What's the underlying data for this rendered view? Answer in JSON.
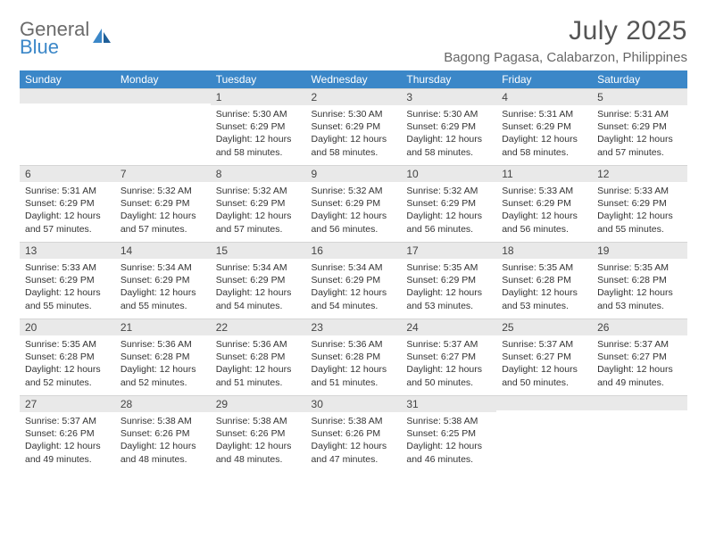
{
  "brand": {
    "word1": "General",
    "word2": "Blue"
  },
  "title": "July 2025",
  "location": "Bagong Pagasa, Calabarzon, Philippines",
  "colors": {
    "header_bg": "#3b87c8",
    "header_text": "#ffffff",
    "daynum_bg": "#e9e9e9",
    "page_bg": "#ffffff",
    "logo_gray": "#6b6b6b",
    "logo_blue": "#3b87c8"
  },
  "days_of_week": [
    "Sunday",
    "Monday",
    "Tuesday",
    "Wednesday",
    "Thursday",
    "Friday",
    "Saturday"
  ],
  "first_weekday_index": 2,
  "cells": [
    {
      "n": 1,
      "sr": "5:30 AM",
      "ss": "6:29 PM",
      "dl": "12 hours and 58 minutes."
    },
    {
      "n": 2,
      "sr": "5:30 AM",
      "ss": "6:29 PM",
      "dl": "12 hours and 58 minutes."
    },
    {
      "n": 3,
      "sr": "5:30 AM",
      "ss": "6:29 PM",
      "dl": "12 hours and 58 minutes."
    },
    {
      "n": 4,
      "sr": "5:31 AM",
      "ss": "6:29 PM",
      "dl": "12 hours and 58 minutes."
    },
    {
      "n": 5,
      "sr": "5:31 AM",
      "ss": "6:29 PM",
      "dl": "12 hours and 57 minutes."
    },
    {
      "n": 6,
      "sr": "5:31 AM",
      "ss": "6:29 PM",
      "dl": "12 hours and 57 minutes."
    },
    {
      "n": 7,
      "sr": "5:32 AM",
      "ss": "6:29 PM",
      "dl": "12 hours and 57 minutes."
    },
    {
      "n": 8,
      "sr": "5:32 AM",
      "ss": "6:29 PM",
      "dl": "12 hours and 57 minutes."
    },
    {
      "n": 9,
      "sr": "5:32 AM",
      "ss": "6:29 PM",
      "dl": "12 hours and 56 minutes."
    },
    {
      "n": 10,
      "sr": "5:32 AM",
      "ss": "6:29 PM",
      "dl": "12 hours and 56 minutes."
    },
    {
      "n": 11,
      "sr": "5:33 AM",
      "ss": "6:29 PM",
      "dl": "12 hours and 56 minutes."
    },
    {
      "n": 12,
      "sr": "5:33 AM",
      "ss": "6:29 PM",
      "dl": "12 hours and 55 minutes."
    },
    {
      "n": 13,
      "sr": "5:33 AM",
      "ss": "6:29 PM",
      "dl": "12 hours and 55 minutes."
    },
    {
      "n": 14,
      "sr": "5:34 AM",
      "ss": "6:29 PM",
      "dl": "12 hours and 55 minutes."
    },
    {
      "n": 15,
      "sr": "5:34 AM",
      "ss": "6:29 PM",
      "dl": "12 hours and 54 minutes."
    },
    {
      "n": 16,
      "sr": "5:34 AM",
      "ss": "6:29 PM",
      "dl": "12 hours and 54 minutes."
    },
    {
      "n": 17,
      "sr": "5:35 AM",
      "ss": "6:29 PM",
      "dl": "12 hours and 53 minutes."
    },
    {
      "n": 18,
      "sr": "5:35 AM",
      "ss": "6:28 PM",
      "dl": "12 hours and 53 minutes."
    },
    {
      "n": 19,
      "sr": "5:35 AM",
      "ss": "6:28 PM",
      "dl": "12 hours and 53 minutes."
    },
    {
      "n": 20,
      "sr": "5:35 AM",
      "ss": "6:28 PM",
      "dl": "12 hours and 52 minutes."
    },
    {
      "n": 21,
      "sr": "5:36 AM",
      "ss": "6:28 PM",
      "dl": "12 hours and 52 minutes."
    },
    {
      "n": 22,
      "sr": "5:36 AM",
      "ss": "6:28 PM",
      "dl": "12 hours and 51 minutes."
    },
    {
      "n": 23,
      "sr": "5:36 AM",
      "ss": "6:28 PM",
      "dl": "12 hours and 51 minutes."
    },
    {
      "n": 24,
      "sr": "5:37 AM",
      "ss": "6:27 PM",
      "dl": "12 hours and 50 minutes."
    },
    {
      "n": 25,
      "sr": "5:37 AM",
      "ss": "6:27 PM",
      "dl": "12 hours and 50 minutes."
    },
    {
      "n": 26,
      "sr": "5:37 AM",
      "ss": "6:27 PM",
      "dl": "12 hours and 49 minutes."
    },
    {
      "n": 27,
      "sr": "5:37 AM",
      "ss": "6:26 PM",
      "dl": "12 hours and 49 minutes."
    },
    {
      "n": 28,
      "sr": "5:38 AM",
      "ss": "6:26 PM",
      "dl": "12 hours and 48 minutes."
    },
    {
      "n": 29,
      "sr": "5:38 AM",
      "ss": "6:26 PM",
      "dl": "12 hours and 48 minutes."
    },
    {
      "n": 30,
      "sr": "5:38 AM",
      "ss": "6:26 PM",
      "dl": "12 hours and 47 minutes."
    },
    {
      "n": 31,
      "sr": "5:38 AM",
      "ss": "6:25 PM",
      "dl": "12 hours and 46 minutes."
    }
  ],
  "labels": {
    "sunrise": "Sunrise:",
    "sunset": "Sunset:",
    "daylight": "Daylight:"
  }
}
